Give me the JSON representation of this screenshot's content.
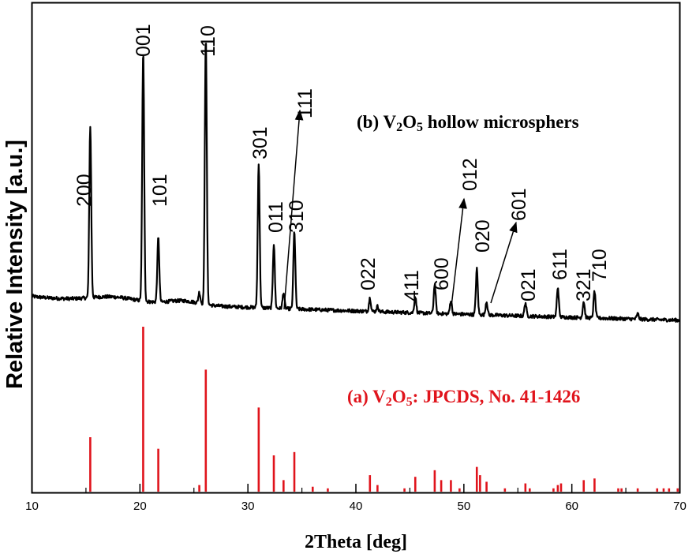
{
  "chart_data": {
    "type": "line",
    "xlabel": "2Theta [deg]",
    "ylabel": "Relative Intensity [a.u.]",
    "xlim": [
      10,
      70
    ],
    "x_ticks": [
      "10",
      "20",
      "30",
      "40",
      "50",
      "60",
      "70"
    ],
    "grid": false,
    "colors": {
      "measured": "#000000",
      "reference": "#e0141c"
    },
    "series_labels": [
      {
        "prefix": "(b) V",
        "sub1": "2",
        "mid": "O",
        "sub2": "5",
        "suffix": " hollow microsphers",
        "color": "#000000"
      },
      {
        "prefix": "(a) V",
        "sub1": "2",
        "mid": "O",
        "sub2": "5",
        "suffix": ": JPCDS, No. 41-1426",
        "color": "#e0141c"
      }
    ],
    "measured_pattern": {
      "background_start": 12.0,
      "background_end": 3.0,
      "peaks": [
        {
          "x": 15.4,
          "height": 64
        },
        {
          "x": 20.3,
          "height": 93
        },
        {
          "x": 21.7,
          "height": 24
        },
        {
          "x": 25.5,
          "height": 4
        },
        {
          "x": 26.1,
          "height": 100
        },
        {
          "x": 31.0,
          "height": 54
        },
        {
          "x": 32.4,
          "height": 24
        },
        {
          "x": 33.3,
          "height": 6
        },
        {
          "x": 34.3,
          "height": 29
        },
        {
          "x": 41.3,
          "height": 5
        },
        {
          "x": 42.0,
          "height": 2
        },
        {
          "x": 45.5,
          "height": 6
        },
        {
          "x": 47.3,
          "height": 11
        },
        {
          "x": 48.8,
          "height": 5
        },
        {
          "x": 51.2,
          "height": 17
        },
        {
          "x": 52.1,
          "height": 5
        },
        {
          "x": 55.7,
          "height": 5
        },
        {
          "x": 58.7,
          "height": 11
        },
        {
          "x": 61.1,
          "height": 6
        },
        {
          "x": 62.1,
          "height": 10
        },
        {
          "x": 66.1,
          "height": 2
        }
      ]
    },
    "reference_pattern": [
      {
        "x": 15.4,
        "height": 33
      },
      {
        "x": 20.3,
        "height": 100
      },
      {
        "x": 21.7,
        "height": 26
      },
      {
        "x": 25.5,
        "height": 4
      },
      {
        "x": 26.1,
        "height": 74
      },
      {
        "x": 31.0,
        "height": 51
      },
      {
        "x": 32.4,
        "height": 22
      },
      {
        "x": 33.3,
        "height": 7
      },
      {
        "x": 34.3,
        "height": 24
      },
      {
        "x": 36.0,
        "height": 3
      },
      {
        "x": 37.4,
        "height": 2
      },
      {
        "x": 41.3,
        "height": 10
      },
      {
        "x": 42.0,
        "height": 4
      },
      {
        "x": 44.5,
        "height": 2
      },
      {
        "x": 45.5,
        "height": 9
      },
      {
        "x": 47.3,
        "height": 13
      },
      {
        "x": 47.9,
        "height": 7
      },
      {
        "x": 48.8,
        "height": 7
      },
      {
        "x": 49.6,
        "height": 2
      },
      {
        "x": 51.2,
        "height": 15
      },
      {
        "x": 51.5,
        "height": 10
      },
      {
        "x": 52.1,
        "height": 6
      },
      {
        "x": 53.8,
        "height": 2
      },
      {
        "x": 55.7,
        "height": 5
      },
      {
        "x": 56.1,
        "height": 2
      },
      {
        "x": 58.3,
        "height": 2
      },
      {
        "x": 58.7,
        "height": 4
      },
      {
        "x": 59.0,
        "height": 5
      },
      {
        "x": 61.1,
        "height": 7
      },
      {
        "x": 62.1,
        "height": 8
      },
      {
        "x": 64.3,
        "height": 2
      },
      {
        "x": 64.6,
        "height": 2
      },
      {
        "x": 66.1,
        "height": 2
      },
      {
        "x": 67.9,
        "height": 2
      },
      {
        "x": 68.5,
        "height": 2
      },
      {
        "x": 69.0,
        "height": 2
      },
      {
        "x": 69.8,
        "height": 2
      }
    ],
    "peak_labels": [
      {
        "text": "200",
        "x": 15.4
      },
      {
        "text": "001",
        "x": 20.3
      },
      {
        "text": "101",
        "x": 21.7
      },
      {
        "text": "110",
        "x": 26.1
      },
      {
        "text": "301",
        "x": 31.0
      },
      {
        "text": "011",
        "x": 32.4
      },
      {
        "text": "111",
        "x": 33.3,
        "arrow": true
      },
      {
        "text": "310",
        "x": 34.3
      },
      {
        "text": "022",
        "x": 41.3
      },
      {
        "text": "411",
        "x": 45.5
      },
      {
        "text": "600",
        "x": 47.3
      },
      {
        "text": "012",
        "x": 48.8,
        "arrow": true
      },
      {
        "text": "020",
        "x": 51.2
      },
      {
        "text": "601",
        "x": 52.1,
        "arrow": true
      },
      {
        "text": "021",
        "x": 55.7
      },
      {
        "text": "611",
        "x": 58.7
      },
      {
        "text": "321",
        "x": 61.1
      },
      {
        "text": "710",
        "x": 62.1
      }
    ]
  }
}
